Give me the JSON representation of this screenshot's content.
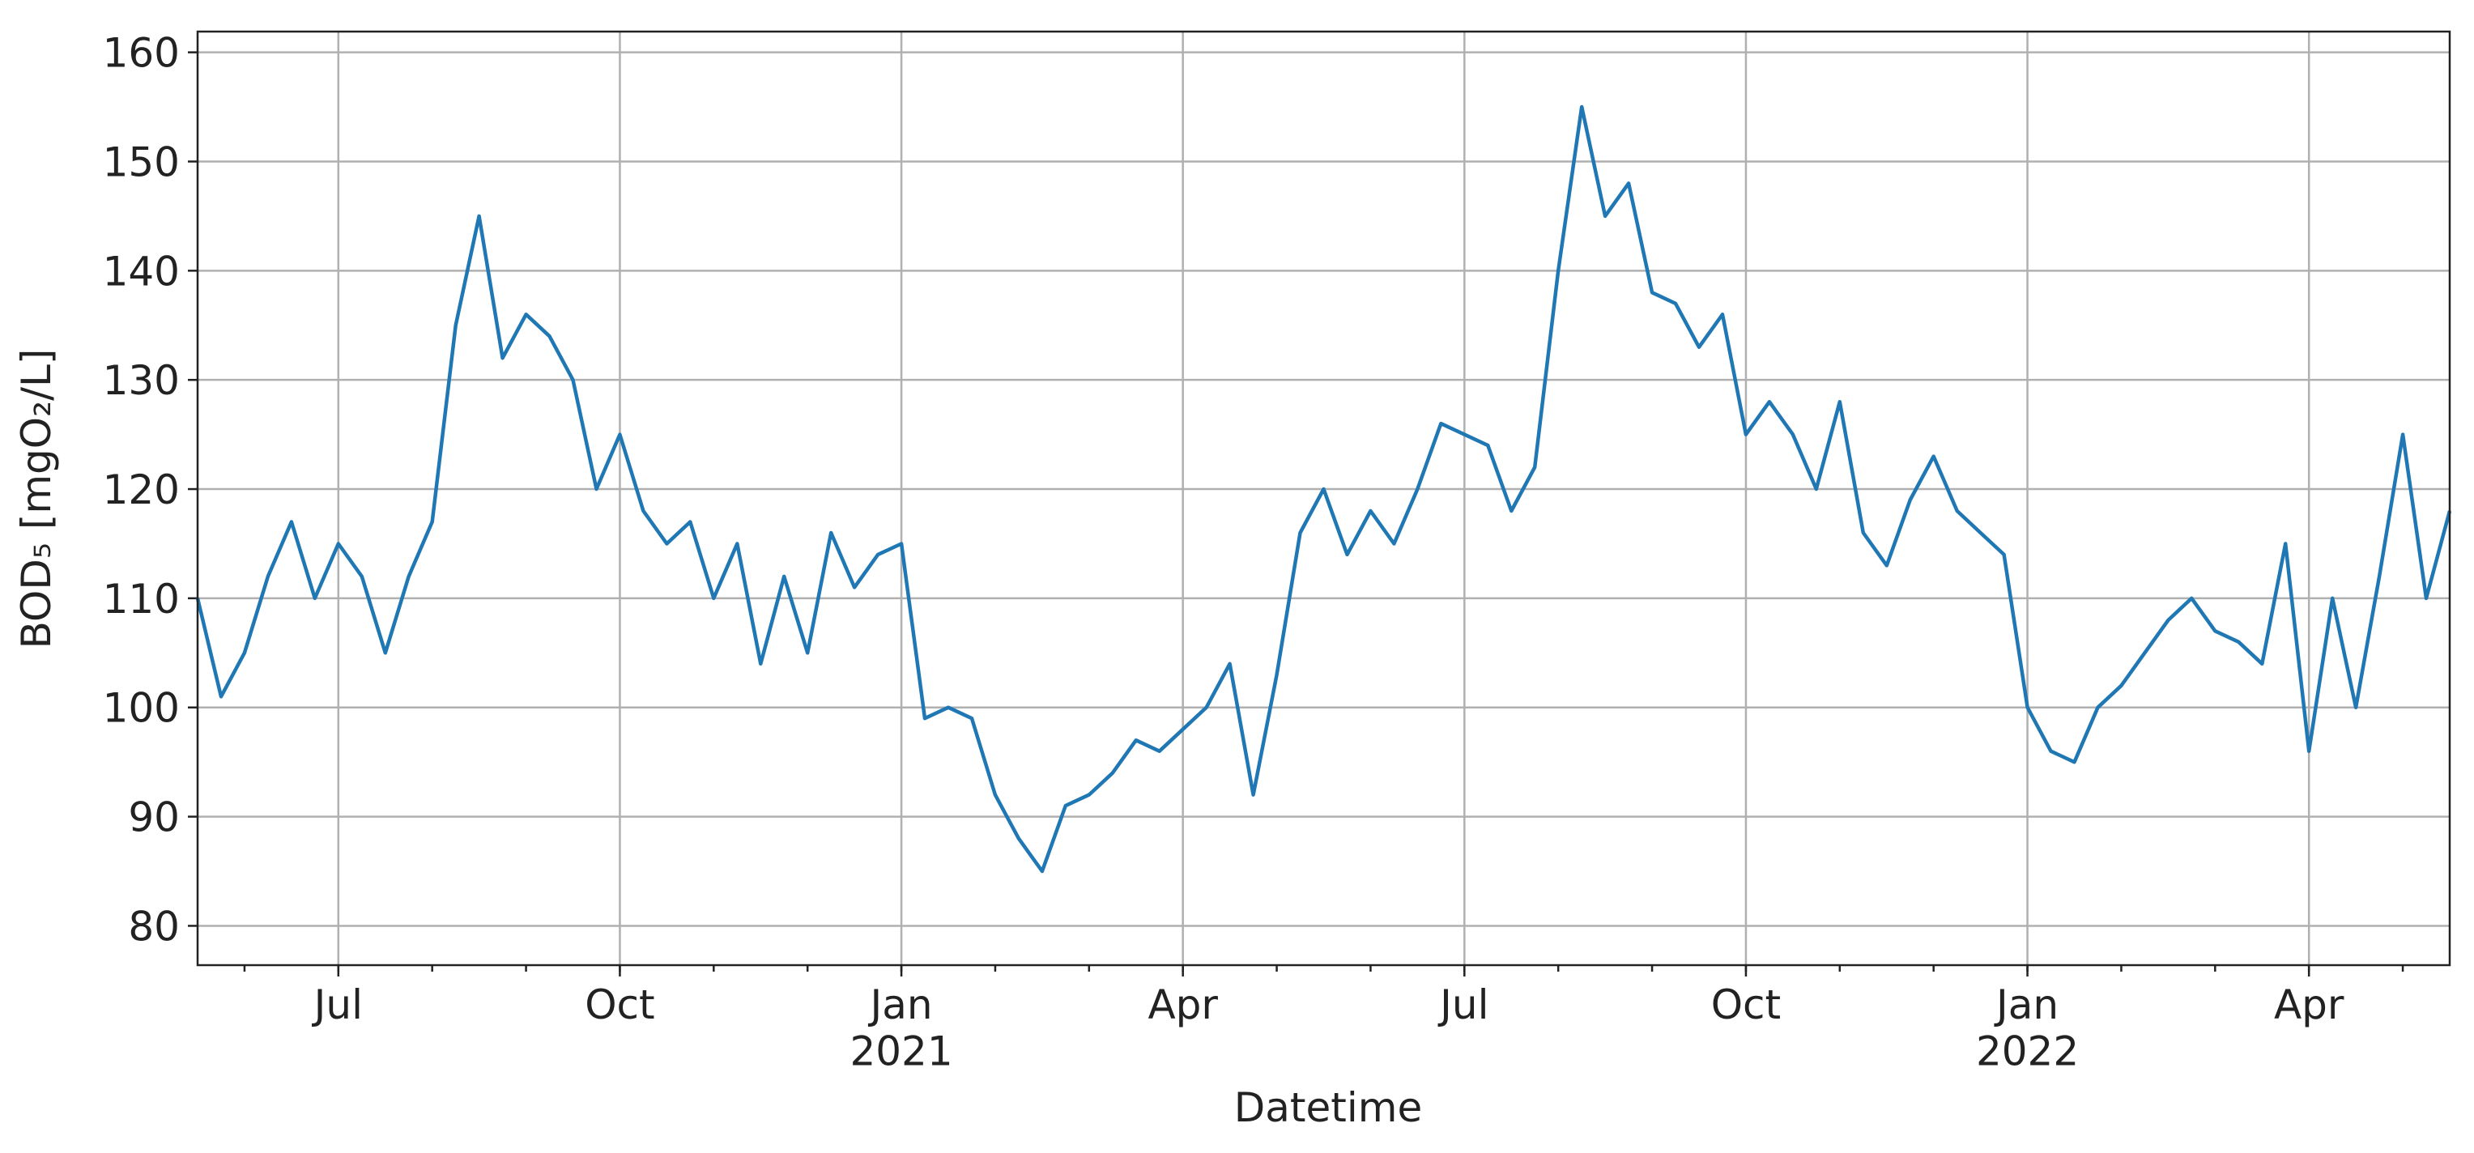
{
  "chart_data": {
    "type": "line",
    "x_label": "Datetime",
    "y_label": "BOD₅ [mgO₂/L]",
    "color": "#1f77b4",
    "grid": true,
    "categories": [
      null,
      null,
      null,
      null,
      null,
      null,
      "Jul",
      null,
      null,
      null,
      null,
      null,
      null,
      null,
      null,
      null,
      null,
      null,
      "Oct",
      null,
      null,
      null,
      null,
      null,
      null,
      null,
      null,
      null,
      null,
      null,
      "Jan\n2021",
      null,
      null,
      null,
      null,
      null,
      null,
      null,
      null,
      null,
      null,
      null,
      "Apr",
      null,
      null,
      null,
      null,
      null,
      null,
      null,
      null,
      null,
      null,
      null,
      "Jul",
      null,
      null,
      null,
      null,
      null,
      null,
      null,
      null,
      null,
      null,
      null,
      "Oct",
      null,
      null,
      null,
      null,
      null,
      null,
      null,
      null,
      null,
      null,
      null,
      "Jan\n2022",
      null,
      null,
      null,
      null,
      null,
      null,
      null,
      null,
      null,
      null,
      null,
      "Apr",
      null,
      null,
      null,
      null,
      null,
      null
    ],
    "values": [
      110,
      101,
      105,
      112,
      117,
      110,
      115,
      112,
      105,
      112,
      117,
      135,
      145,
      132,
      136,
      134,
      130,
      120,
      125,
      118,
      115,
      117,
      110,
      115,
      104,
      112,
      105,
      116,
      111,
      114,
      115,
      99,
      100,
      99,
      92,
      88,
      85,
      91,
      92,
      94,
      97,
      96,
      98,
      100,
      104,
      92,
      103,
      116,
      120,
      114,
      118,
      115,
      120,
      126,
      125,
      124,
      118,
      122,
      140,
      155,
      145,
      148,
      138,
      137,
      133,
      136,
      125,
      128,
      125,
      120,
      128,
      116,
      113,
      119,
      123,
      118,
      116,
      114,
      100,
      96,
      95,
      100,
      102,
      105,
      108,
      110,
      107,
      106,
      104,
      115,
      96,
      110,
      100,
      112,
      125,
      110,
      118
    ],
    "ylim": [
      76.4,
      161.9
    ],
    "yticks": [
      80,
      90,
      100,
      110,
      120,
      130,
      140,
      150,
      160
    ]
  }
}
